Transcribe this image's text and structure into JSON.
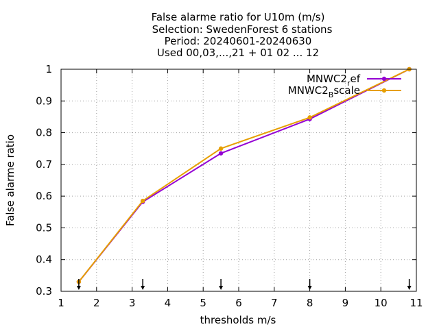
{
  "chart_data": {
    "type": "line",
    "title_lines": [
      "False alarme ratio  for U10m (m/s)",
      "Selection: SwedenForest      6 stations",
      "Period: 20240601-20240630",
      "Used 00,03,...,21 + 01 02 ... 12"
    ],
    "xlabel": "thresholds m/s",
    "ylabel": "False alarme ratio",
    "xlim": [
      1,
      11
    ],
    "ylim": [
      0.3,
      1.0
    ],
    "xticks": [
      1,
      2,
      3,
      4,
      5,
      6,
      7,
      8,
      9,
      10,
      11
    ],
    "yticks": [
      0.3,
      0.4,
      0.5,
      0.6,
      0.7,
      0.8,
      0.9,
      1.0
    ],
    "xtick_labels": [
      "1",
      "2",
      "3",
      "4",
      "5",
      "6",
      "7",
      "8",
      "9",
      "10",
      "11"
    ],
    "ytick_labels": [
      "0.3",
      "0.4",
      "0.5",
      "0.6",
      "0.7",
      "0.8",
      "0.9",
      "1"
    ],
    "grid": true,
    "legend_position": "top-right",
    "threshold_markers": [
      1.5,
      3.3,
      5.5,
      8.0,
      10.8
    ],
    "series": [
      {
        "name": "MNWC2_ref",
        "legend_main": "MNWC2",
        "legend_sub": "r",
        "legend_tail": "ef",
        "color": "#9400d3",
        "x": [
          1.5,
          3.3,
          5.5,
          8.0,
          10.8
        ],
        "y": [
          0.33,
          0.582,
          0.735,
          0.843,
          1.0
        ]
      },
      {
        "name": "MNWC2_Bscale",
        "legend_main": "MNWC2",
        "legend_sub": "B",
        "legend_tail": "scale",
        "color": "#e69f00",
        "x": [
          1.5,
          3.3,
          5.5,
          8.0,
          10.8
        ],
        "y": [
          0.33,
          0.585,
          0.75,
          0.848,
          1.0
        ]
      }
    ]
  }
}
